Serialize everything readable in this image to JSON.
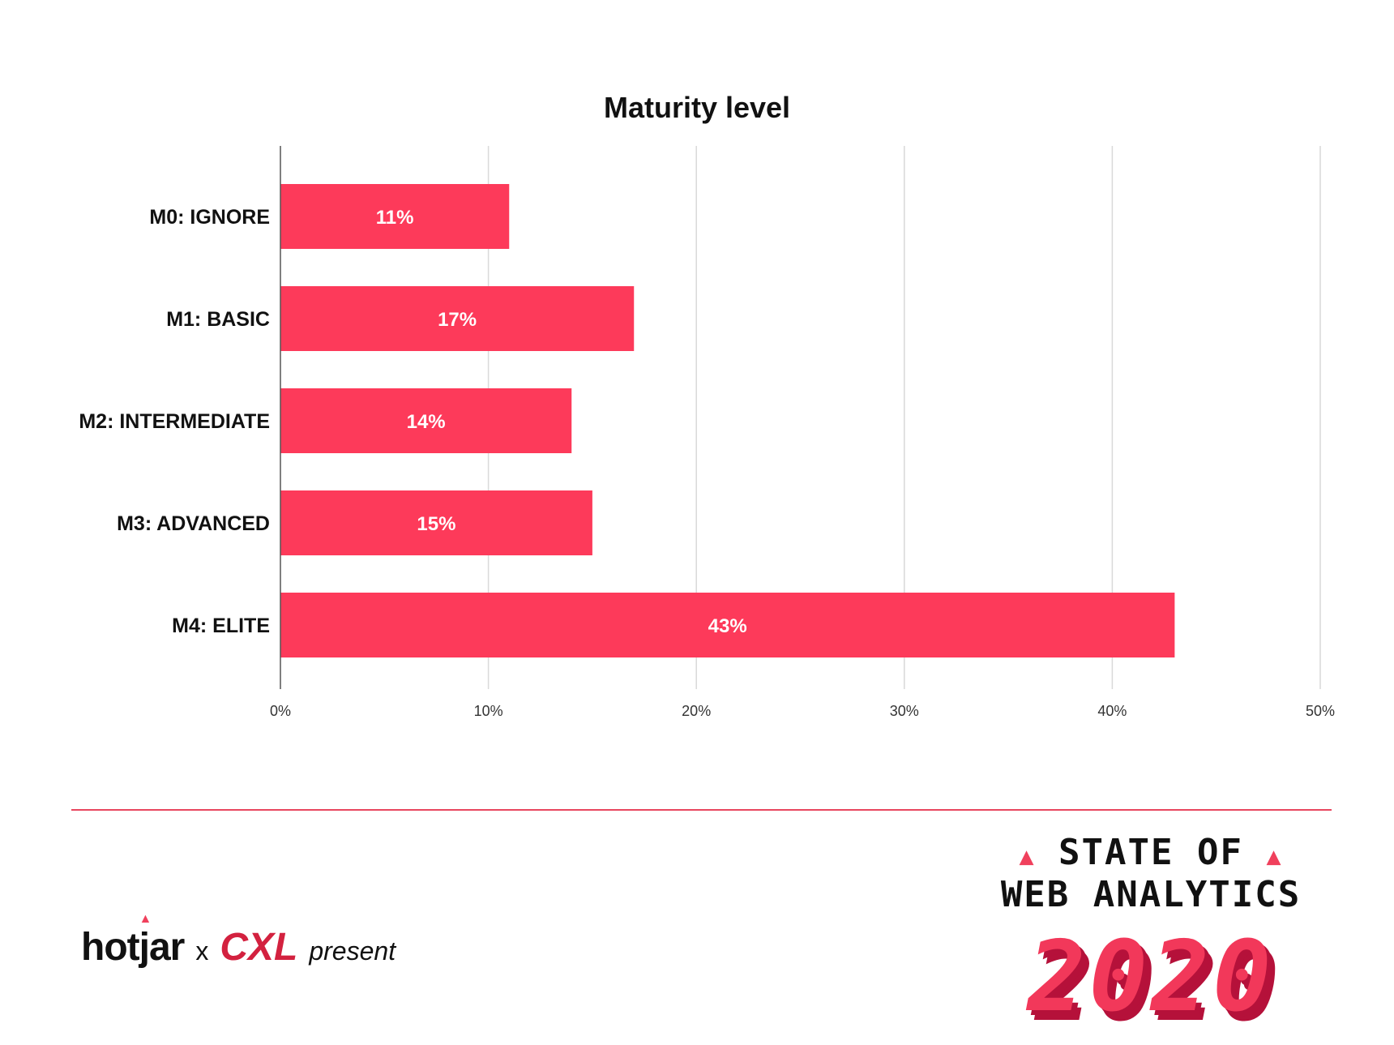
{
  "chart_data": {
    "type": "bar",
    "orientation": "horizontal",
    "title": "Maturity level",
    "categories": [
      "M0: IGNORE",
      "M1: BASIC",
      "M2: INTERMEDIATE",
      "M3: ADVANCED",
      "M4: ELITE"
    ],
    "values": [
      11,
      17,
      14,
      15,
      43
    ],
    "data_labels": [
      "11%",
      "17%",
      "14%",
      "15%",
      "43%"
    ],
    "xlim": [
      0,
      50
    ],
    "x_ticks": [
      0,
      10,
      20,
      30,
      40,
      50
    ],
    "x_tick_labels": [
      "0%",
      "10%",
      "20%",
      "30%",
      "40%",
      "50%"
    ],
    "xlabel": "",
    "ylabel": "",
    "grid": "vertical",
    "bar_color": "#fd3a5a"
  },
  "footer": {
    "brand_hotjar": "hotjar",
    "brand_x": "x",
    "brand_cxl": "CXL",
    "brand_present": "present",
    "logo_line1": "STATE OF",
    "logo_line2": "WEB ANALYTICS",
    "logo_year": "2020",
    "accent": "#e8475f"
  }
}
